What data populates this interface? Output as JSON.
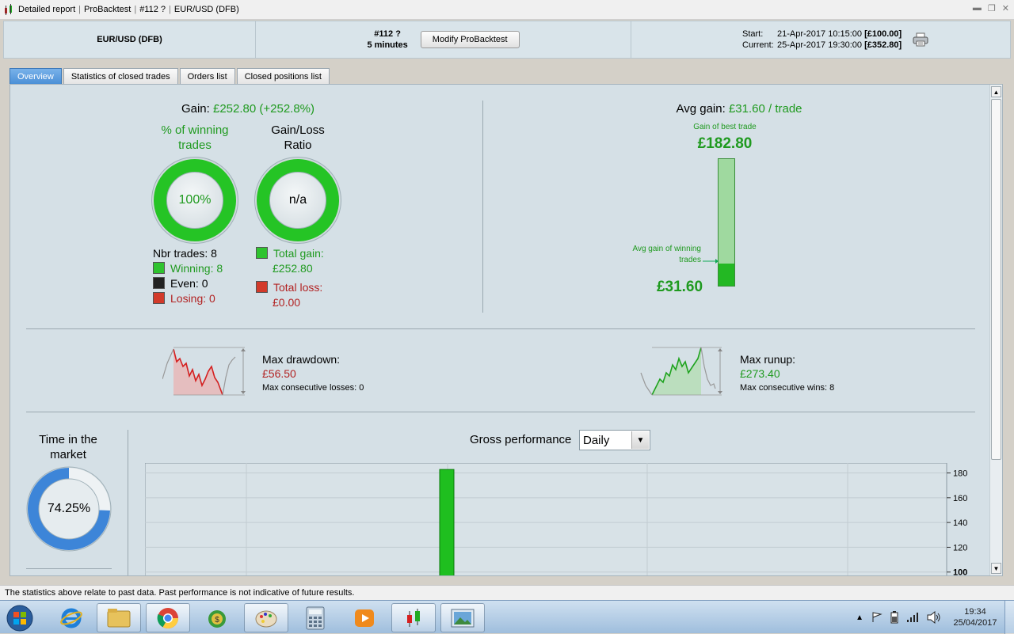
{
  "window": {
    "title_parts": [
      "Detailed report",
      "ProBacktest",
      "#112 ?",
      "EUR/USD (DFB)"
    ]
  },
  "header": {
    "instrument": "EUR/USD (DFB)",
    "system": "#112 ?",
    "timeframe": "5 minutes",
    "modify_button": "Modify ProBacktest",
    "start_label": "Start:",
    "start_date": "21-Apr-2017 10:15:00",
    "start_value": "[£100.00]",
    "current_label": "Current:",
    "current_date": "25-Apr-2017 19:30:00",
    "current_value": "[£352.80]"
  },
  "tabs": [
    {
      "label": "Overview",
      "active": true
    },
    {
      "label": "Statistics of closed trades",
      "active": false
    },
    {
      "label": "Orders list",
      "active": false
    },
    {
      "label": "Closed positions list",
      "active": false
    }
  ],
  "overview": {
    "gain_label": "Gain:",
    "gain_value": "£252.80 (+252.8%)",
    "winning_title_1": "% of winning",
    "winning_title_2": "trades",
    "winning_pct": "100%",
    "ratio_title_1": "Gain/Loss",
    "ratio_title_2": "Ratio",
    "ratio_value": "n/a",
    "nbr_trades": "Nbr trades: 8",
    "winning": "Winning: 8",
    "even": "Even: 0",
    "losing": "Losing: 0",
    "total_gain_label": "Total gain:",
    "total_gain_value": "£252.80",
    "total_loss_label": "Total loss:",
    "total_loss_value": "£0.00",
    "avg_gain_label": "Avg gain:",
    "avg_gain_value": "£31.60 / trade",
    "best_trade_label": "Gain of best trade",
    "best_trade_value": "£182.80",
    "avg_winning_label_1": "Avg gain of winning",
    "avg_winning_label_2": "trades",
    "avg_winning_value": "£31.60",
    "avg_to_best_fraction": 0.173,
    "max_drawdown_label": "Max drawdown:",
    "max_drawdown_value": "£56.50",
    "max_consec_losses": "Max consecutive losses: 0",
    "max_runup_label": "Max runup:",
    "max_runup_value": "£273.40",
    "max_consec_wins": "Max consecutive wins: 8",
    "time_in_market_1": "Time in the",
    "time_in_market_2": "market",
    "time_in_market_value": "74.25%",
    "time_in_market_fraction": 0.7425,
    "gross_perf_label": "Gross performance",
    "gross_perf_period": "Daily"
  },
  "chart_data": {
    "type": "bar",
    "title": "Gross performance",
    "values": [
      182.8
    ],
    "y_ticks": [
      "180",
      "160",
      "140",
      "120",
      "100"
    ],
    "ylim": [
      96,
      188
    ],
    "grid": true
  },
  "status": {
    "text": "The statistics above relate to past data. Past performance is not indicative of future results."
  },
  "taskbar": {
    "time": "19:34",
    "date": "25/04/2017"
  },
  "colors": {
    "gain_green": "#1f9a1f",
    "loss_red": "#b22222",
    "ring_green": "#25c425",
    "tab_blue": "#4a8fd6",
    "market_blue": "#3d85d8"
  }
}
